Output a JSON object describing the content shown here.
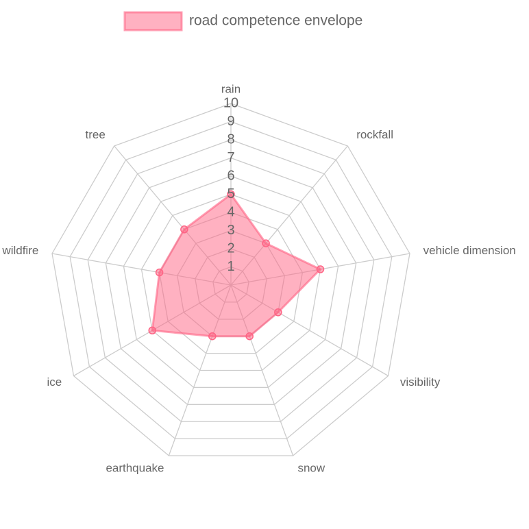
{
  "chart_data": {
    "type": "radar",
    "categories": [
      "rain",
      "rockfall",
      "vehicle dimension",
      "visibility",
      "snow",
      "earthquake",
      "ice",
      "wildfire",
      "tree"
    ],
    "series": [
      {
        "name": "road competence envelope",
        "color": "#ff6384",
        "values": [
          5,
          3,
          5,
          3,
          3,
          3,
          5,
          4,
          4
        ]
      }
    ],
    "ylim": [
      0,
      10
    ],
    "yticks": [
      1,
      2,
      3,
      4,
      5,
      6,
      7,
      8,
      9,
      10
    ],
    "grid": true,
    "legend": "top"
  }
}
